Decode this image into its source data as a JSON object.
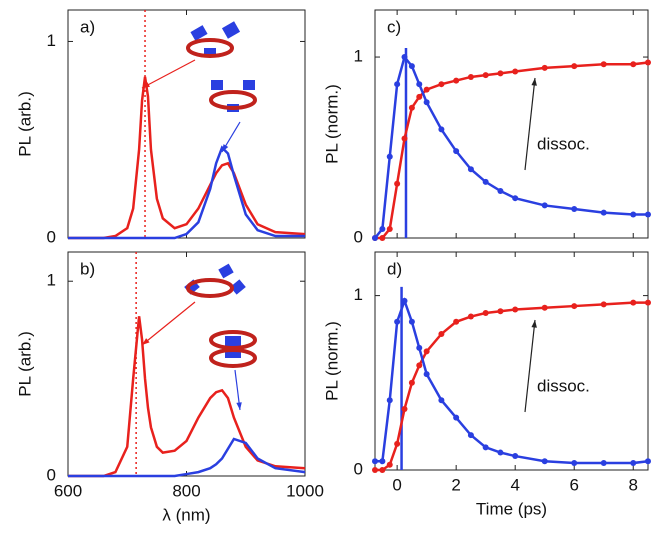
{
  "chart_data": [
    {
      "type": "line",
      "label": "a)",
      "ylabel": "PL (arb.)",
      "show_xtick_labels": false,
      "x": [
        600,
        640,
        660,
        680,
        700,
        710,
        720,
        725,
        730,
        735,
        740,
        750,
        760,
        780,
        800,
        820,
        840,
        850,
        860,
        870,
        880,
        900,
        920,
        950,
        1000
      ],
      "series": [
        {
          "color": "#e8211d",
          "values": [
            0,
            0,
            0,
            0.01,
            0.05,
            0.15,
            0.45,
            0.7,
            0.82,
            0.72,
            0.45,
            0.2,
            0.1,
            0.05,
            0.07,
            0.15,
            0.27,
            0.33,
            0.37,
            0.38,
            0.33,
            0.17,
            0.07,
            0.03,
            0.02
          ]
        },
        {
          "color": "#2a3fe0",
          "values": [
            0,
            0,
            0,
            0,
            0,
            0,
            0,
            0,
            0,
            0,
            0,
            0,
            0,
            0,
            0.02,
            0.08,
            0.25,
            0.38,
            0.46,
            0.43,
            0.32,
            0.12,
            0.04,
            0.01,
            0.01
          ]
        }
      ],
      "vline": 730,
      "xlim": [
        600,
        1000
      ],
      "xticks": [
        600,
        800,
        1000
      ],
      "ylim": [
        0,
        1.16
      ],
      "yticks": [
        0,
        1
      ]
    },
    {
      "type": "line",
      "label": "b)",
      "ylabel": "PL (arb.)",
      "xlabel": "λ (nm)",
      "show_xtick_labels": true,
      "x": [
        600,
        640,
        660,
        680,
        700,
        710,
        720,
        725,
        730,
        735,
        740,
        750,
        760,
        780,
        800,
        820,
        840,
        850,
        860,
        870,
        880,
        900,
        920,
        950,
        1000
      ],
      "series": [
        {
          "color": "#e8211d",
          "values": [
            0,
            0,
            0,
            0.02,
            0.15,
            0.5,
            0.82,
            0.7,
            0.5,
            0.35,
            0.25,
            0.15,
            0.12,
            0.13,
            0.18,
            0.3,
            0.4,
            0.43,
            0.44,
            0.4,
            0.3,
            0.15,
            0.08,
            0.05,
            0.04
          ]
        },
        {
          "color": "#2a3fe0",
          "values": [
            0,
            0,
            0,
            0,
            0,
            0,
            0,
            0,
            0,
            0,
            0,
            0,
            0,
            0,
            0.01,
            0.02,
            0.04,
            0.06,
            0.09,
            0.14,
            0.19,
            0.17,
            0.09,
            0.04,
            0.02
          ]
        }
      ],
      "vline": 715,
      "xlim": [
        600,
        1000
      ],
      "xticks": [
        600,
        800,
        1000
      ],
      "ylim": [
        0,
        1.15
      ],
      "yticks": [
        0,
        1
      ]
    },
    {
      "type": "line",
      "label": "c)",
      "ylabel": "PL (norm.)",
      "annotation": "dissoc.",
      "show_xtick_labels": false,
      "x": [
        -0.75,
        -0.5,
        -0.25,
        0,
        0.25,
        0.5,
        0.75,
        1,
        1.5,
        2,
        2.5,
        3,
        3.5,
        4,
        5,
        6,
        7,
        8,
        8.5
      ],
      "series": [
        {
          "color": "#e8211d",
          "values": [
            0,
            0,
            0.05,
            0.3,
            0.55,
            0.72,
            0.78,
            0.82,
            0.85,
            0.87,
            0.89,
            0.9,
            0.91,
            0.92,
            0.94,
            0.95,
            0.96,
            0.96,
            0.97
          ]
        },
        {
          "color": "#2a3fe0",
          "values": [
            0,
            0.05,
            0.45,
            0.85,
            1.0,
            0.95,
            0.85,
            0.75,
            0.6,
            0.48,
            0.38,
            0.31,
            0.26,
            0.22,
            0.18,
            0.16,
            0.14,
            0.13,
            0.13
          ]
        }
      ],
      "vline": 0.3,
      "xlim": [
        -0.75,
        8.5
      ],
      "xticks": [
        0,
        2,
        4,
        6,
        8
      ],
      "ylim": [
        0,
        1.26
      ],
      "yticks": [
        0,
        1
      ]
    },
    {
      "type": "line",
      "label": "d)",
      "ylabel": "PL (norm.)",
      "xlabel": "Time (ps)",
      "annotation": "dissoc.",
      "show_xtick_labels": true,
      "x": [
        -0.75,
        -0.5,
        -0.25,
        0,
        0.25,
        0.5,
        0.75,
        1,
        1.5,
        2,
        2.5,
        3,
        3.5,
        4,
        5,
        6,
        7,
        8,
        8.5
      ],
      "series": [
        {
          "color": "#e8211d",
          "values": [
            0,
            0,
            0.03,
            0.15,
            0.35,
            0.5,
            0.6,
            0.68,
            0.78,
            0.85,
            0.88,
            0.9,
            0.91,
            0.92,
            0.93,
            0.94,
            0.95,
            0.96,
            0.96
          ]
        },
        {
          "color": "#2a3fe0",
          "values": [
            0.05,
            0.05,
            0.4,
            0.85,
            0.97,
            0.85,
            0.7,
            0.55,
            0.4,
            0.3,
            0.2,
            0.13,
            0.1,
            0.08,
            0.05,
            0.04,
            0.04,
            0.04,
            0.05
          ]
        }
      ],
      "vline": 0.15,
      "xlim": [
        -0.75,
        8.5
      ],
      "xticks": [
        0,
        2,
        4,
        6,
        8
      ],
      "ylim": [
        0,
        1.25
      ],
      "yticks": [
        0,
        1
      ]
    }
  ]
}
